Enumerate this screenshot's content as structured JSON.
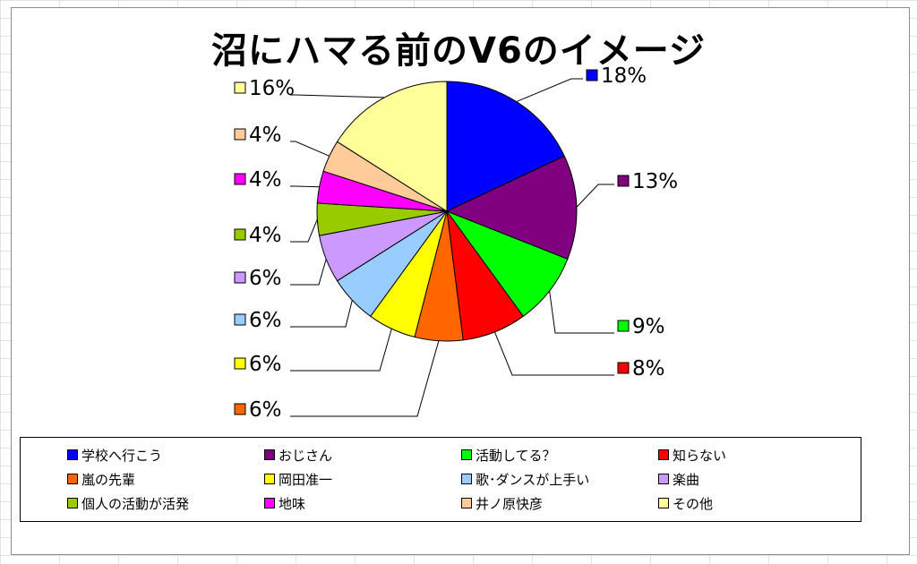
{
  "chart_data": {
    "type": "pie",
    "title": "沼にハマる前のV6のイメージ",
    "start_angle_deg": 0,
    "direction": "clockwise",
    "slices": [
      {
        "label": "学校へ行こう",
        "value": 18,
        "display": "18%",
        "color": "#0000ff"
      },
      {
        "label": "おじさん",
        "value": 13,
        "display": "13%",
        "color": "#800080"
      },
      {
        "label": "活動してる？",
        "value": 9,
        "display": "9%",
        "color": "#00ff00"
      },
      {
        "label": "知らない",
        "value": 8,
        "display": "8%",
        "color": "#ff0000"
      },
      {
        "label": "嵐の先輩",
        "value": 6,
        "display": "6%",
        "color": "#ff6600"
      },
      {
        "label": "岡田准一",
        "value": 6,
        "display": "6%",
        "color": "#ffff00"
      },
      {
        "label": "歌･ダンスが上手い",
        "value": 6,
        "display": "6%",
        "color": "#99ccff"
      },
      {
        "label": "楽曲",
        "value": 6,
        "display": "6%",
        "color": "#cc99ff"
      },
      {
        "label": "個人の活動が活発",
        "value": 4,
        "display": "4%",
        "color": "#99cc00"
      },
      {
        "label": "地味",
        "value": 4,
        "display": "4%",
        "color": "#ff00ff"
      },
      {
        "label": "井ノ原快彦",
        "value": 4,
        "display": "4%",
        "color": "#ffcc99"
      },
      {
        "label": "その他",
        "value": 16,
        "display": "16%",
        "color": "#ffff99"
      }
    ],
    "legend_position": "bottom"
  }
}
